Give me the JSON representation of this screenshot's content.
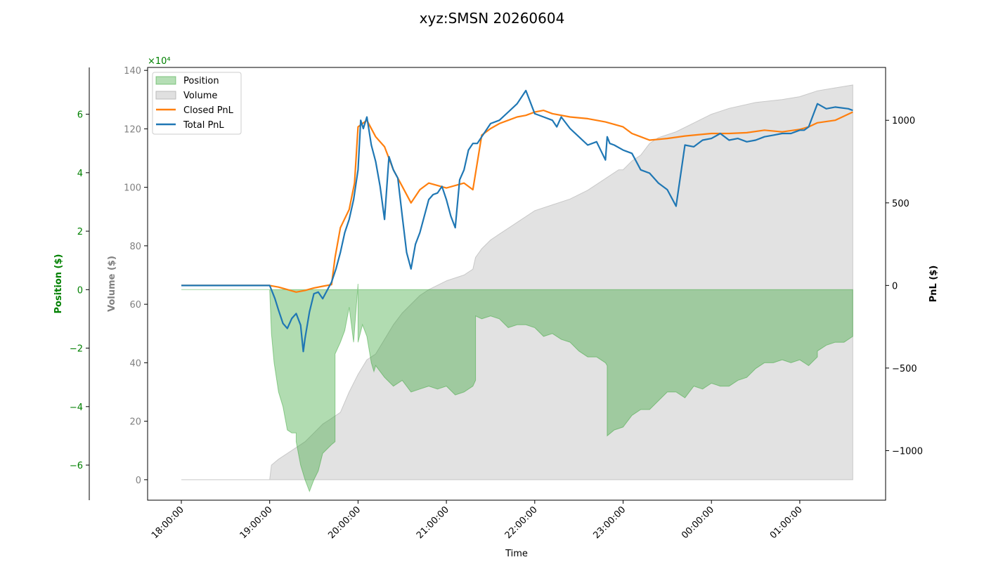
{
  "chart_data": {
    "type": "line",
    "title": "xyz:SMSN 20260604",
    "xlabel": "Time",
    "x_ticks": [
      "18:00:00",
      "19:00:00",
      "20:00:00",
      "21:00:00",
      "22:00:00",
      "23:00:00",
      "00:00:00",
      "01:00:00"
    ],
    "axes": {
      "position": {
        "label": "Position ($)",
        "scale_label": "×10⁴",
        "scale": 10000,
        "ylim": [
          -7.2,
          7.6
        ],
        "ticks": [
          -6,
          -4,
          -2,
          0,
          2,
          4,
          6
        ],
        "color": "#008000"
      },
      "volume": {
        "label": "Volume ($)",
        "ylim": [
          -7,
          141
        ],
        "ticks": [
          0,
          20,
          40,
          60,
          80,
          100,
          120,
          140
        ],
        "color": "#808080"
      },
      "pnl": {
        "label": "PnL ($)",
        "ylim": [
          -1300,
          1320
        ],
        "ticks": [
          -1000,
          -500,
          0,
          500,
          1000
        ],
        "color": "#000000"
      }
    },
    "legend": {
      "placement": "upper-left",
      "entries": [
        "Position",
        "Volume",
        "Closed PnL",
        "Total PnL"
      ]
    },
    "colors": {
      "position_fill": "#2ca02c",
      "volume_fill": "#d3d3d3",
      "closed_pnl": "#ff7f0e",
      "total_pnl": "#1f77b4"
    },
    "series": [
      {
        "name": "Volume",
        "axis": "volume",
        "x": [
          0.0,
          1.0,
          1.02,
          1.1,
          1.2,
          1.3,
          1.4,
          1.5,
          1.6,
          1.7,
          1.8,
          1.9,
          2.0,
          2.1,
          2.2,
          2.3,
          2.4,
          2.5,
          2.6,
          2.7,
          2.8,
          3.0,
          3.2,
          3.3,
          3.33,
          3.4,
          3.5,
          3.6,
          3.7,
          3.8,
          3.9,
          4.0,
          4.2,
          4.4,
          4.6,
          4.8,
          4.95,
          5.0,
          5.1,
          5.2,
          5.3,
          5.4,
          5.6,
          5.8,
          6.0,
          6.2,
          6.5,
          6.8,
          7.0,
          7.2,
          7.4,
          7.6
        ],
        "values": [
          0,
          0,
          5,
          7,
          9,
          11,
          13,
          16,
          19,
          21,
          23,
          30,
          36,
          41,
          43,
          48,
          53,
          57,
          60,
          63,
          65,
          68,
          70,
          72,
          76,
          79,
          82,
          84,
          86,
          88,
          90,
          92,
          94,
          96,
          99,
          103,
          106,
          106,
          109,
          111,
          115,
          117,
          119,
          122,
          125,
          127,
          129,
          130,
          131,
          133,
          134,
          135
        ]
      },
      {
        "name": "Position",
        "axis": "position",
        "x": [
          0.0,
          1.0,
          1.02,
          1.05,
          1.1,
          1.15,
          1.2,
          1.25,
          1.3,
          1.3,
          1.35,
          1.4,
          1.45,
          1.5,
          1.55,
          1.6,
          1.7,
          1.74,
          1.74,
          1.8,
          1.85,
          1.9,
          1.95,
          2.0,
          2.0,
          2.05,
          2.1,
          2.15,
          2.18,
          2.2,
          2.3,
          2.4,
          2.5,
          2.6,
          2.7,
          2.8,
          2.9,
          3.0,
          3.1,
          3.2,
          3.3,
          3.33,
          3.33,
          3.4,
          3.5,
          3.6,
          3.7,
          3.8,
          3.9,
          4.0,
          4.1,
          4.2,
          4.3,
          4.4,
          4.5,
          4.6,
          4.7,
          4.8,
          4.82,
          4.82,
          4.9,
          5.0,
          5.1,
          5.2,
          5.3,
          5.4,
          5.5,
          5.6,
          5.7,
          5.8,
          5.9,
          6.0,
          6.1,
          6.2,
          6.3,
          6.4,
          6.5,
          6.6,
          6.7,
          6.8,
          6.9,
          7.0,
          7.1,
          7.2,
          7.2,
          7.3,
          7.4,
          7.5,
          7.6
        ],
        "values": [
          0,
          0,
          -1.5,
          -2.5,
          -3.5,
          -4.0,
          -4.8,
          -4.9,
          -4.9,
          -5.2,
          -6.0,
          -6.5,
          -6.9,
          -6.5,
          -6.2,
          -5.6,
          -5.3,
          -5.2,
          -2.2,
          -1.8,
          -1.4,
          -0.6,
          -1.8,
          0.2,
          -1.8,
          -1.2,
          -1.6,
          -2.5,
          -2.8,
          -2.6,
          -3.0,
          -3.3,
          -3.1,
          -3.5,
          -3.4,
          -3.3,
          -3.4,
          -3.3,
          -3.6,
          -3.5,
          -3.3,
          -3.1,
          -0.9,
          -1.0,
          -0.9,
          -1.0,
          -1.3,
          -1.2,
          -1.2,
          -1.3,
          -1.6,
          -1.5,
          -1.7,
          -1.8,
          -2.1,
          -2.3,
          -2.3,
          -2.5,
          -2.6,
          -5.0,
          -4.8,
          -4.7,
          -4.3,
          -4.1,
          -4.1,
          -3.8,
          -3.5,
          -3.5,
          -3.7,
          -3.3,
          -3.4,
          -3.2,
          -3.3,
          -3.3,
          -3.1,
          -3.0,
          -2.7,
          -2.5,
          -2.5,
          -2.4,
          -2.5,
          -2.4,
          -2.6,
          -2.3,
          -2.1,
          -1.9,
          -1.8,
          -1.8,
          -1.6
        ]
      },
      {
        "name": "Closed PnL",
        "axis": "pnl",
        "x": [
          0.0,
          1.0,
          1.1,
          1.2,
          1.3,
          1.4,
          1.5,
          1.6,
          1.7,
          1.74,
          1.8,
          1.9,
          1.96,
          2.0,
          2.1,
          2.2,
          2.3,
          2.4,
          2.5,
          2.6,
          2.7,
          2.8,
          3.0,
          3.2,
          3.3,
          3.4,
          3.5,
          3.6,
          3.7,
          3.8,
          3.9,
          4.0,
          4.1,
          4.2,
          4.4,
          4.6,
          4.8,
          5.0,
          5.1,
          5.2,
          5.3,
          5.5,
          5.7,
          5.8,
          6.0,
          6.2,
          6.4,
          6.6,
          6.8,
          7.0,
          7.1,
          7.2,
          7.4,
          7.6
        ],
        "values": [
          0,
          0,
          -10,
          -25,
          -40,
          -30,
          -15,
          -5,
          5,
          170,
          350,
          460,
          620,
          960,
          1000,
          900,
          840,
          700,
          600,
          500,
          580,
          620,
          590,
          620,
          580,
          910,
          950,
          980,
          1000,
          1020,
          1030,
          1050,
          1060,
          1040,
          1020,
          1010,
          990,
          960,
          920,
          900,
          880,
          890,
          905,
          910,
          920,
          920,
          925,
          940,
          930,
          945,
          960,
          985,
          1000,
          1050
        ]
      },
      {
        "name": "Total PnL",
        "axis": "pnl",
        "x": [
          0.0,
          1.0,
          1.03,
          1.06,
          1.1,
          1.15,
          1.2,
          1.25,
          1.3,
          1.35,
          1.38,
          1.4,
          1.45,
          1.5,
          1.55,
          1.6,
          1.65,
          1.7,
          1.75,
          1.8,
          1.85,
          1.9,
          1.95,
          2.0,
          2.03,
          2.06,
          2.1,
          2.15,
          2.2,
          2.25,
          2.3,
          2.35,
          2.4,
          2.45,
          2.5,
          2.55,
          2.6,
          2.65,
          2.7,
          2.75,
          2.8,
          2.85,
          2.9,
          2.95,
          3.0,
          3.05,
          3.1,
          3.15,
          3.2,
          3.25,
          3.3,
          3.35,
          3.4,
          3.5,
          3.6,
          3.7,
          3.8,
          3.9,
          4.0,
          4.1,
          4.2,
          4.25,
          4.3,
          4.4,
          4.5,
          4.6,
          4.7,
          4.8,
          4.82,
          4.85,
          4.9,
          5.0,
          5.1,
          5.2,
          5.3,
          5.4,
          5.5,
          5.6,
          5.7,
          5.8,
          5.9,
          6.0,
          6.1,
          6.2,
          6.3,
          6.4,
          6.5,
          6.6,
          6.7,
          6.8,
          6.9,
          7.0,
          7.05,
          7.1,
          7.2,
          7.3,
          7.4,
          7.55,
          7.6
        ],
        "values": [
          0,
          0,
          -40,
          -80,
          -150,
          -230,
          -260,
          -200,
          -170,
          -240,
          -400,
          -320,
          -160,
          -50,
          -40,
          -80,
          -30,
          20,
          100,
          200,
          320,
          400,
          520,
          700,
          1000,
          950,
          1020,
          850,
          750,
          600,
          400,
          780,
          700,
          650,
          420,
          200,
          100,
          250,
          320,
          420,
          520,
          550,
          560,
          600,
          520,
          420,
          350,
          640,
          700,
          820,
          860,
          860,
          900,
          980,
          1000,
          1050,
          1100,
          1180,
          1040,
          1020,
          1000,
          960,
          1020,
          950,
          900,
          850,
          870,
          760,
          900,
          860,
          850,
          820,
          800,
          700,
          680,
          620,
          580,
          480,
          850,
          840,
          880,
          890,
          920,
          880,
          890,
          870,
          880,
          900,
          910,
          920,
          920,
          940,
          940,
          960,
          1100,
          1070,
          1080,
          1070,
          1060
        ]
      }
    ]
  }
}
